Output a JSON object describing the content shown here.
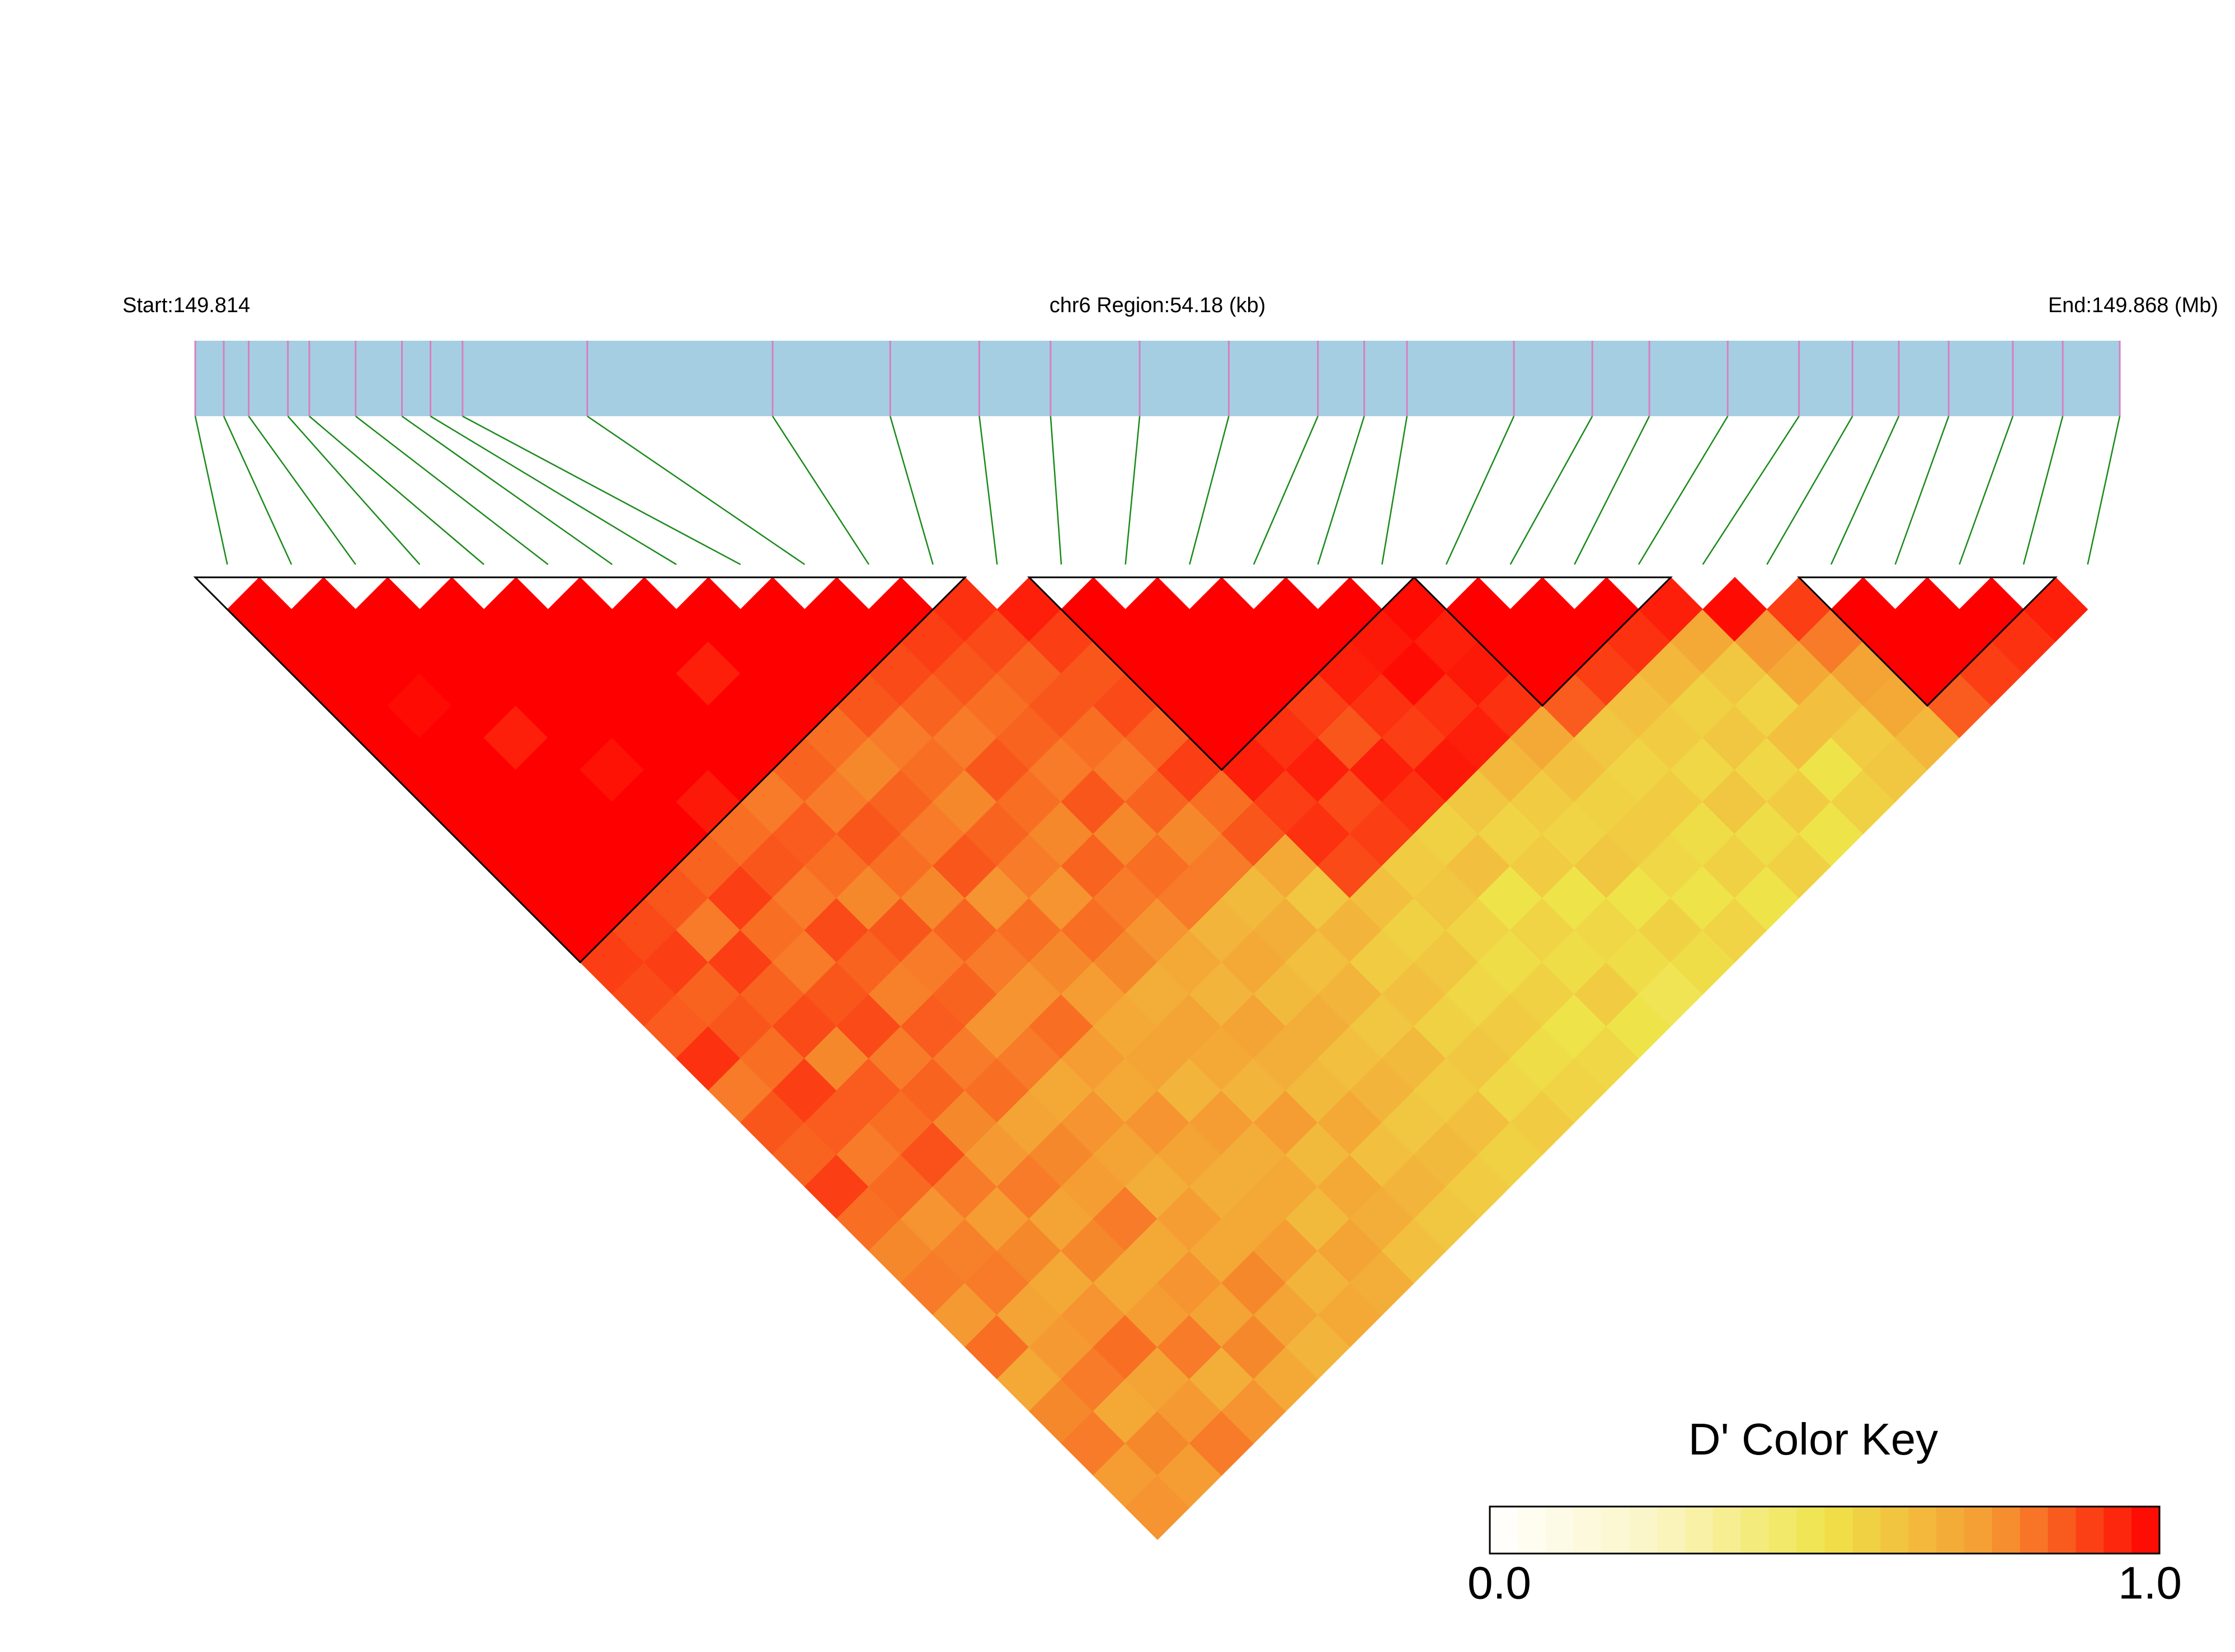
{
  "chart_data": {
    "type": "ld-heatmap",
    "start_label": "Start:149.814",
    "region_label": "chr6 Region:54.18 (kb)",
    "end_label": "End:149.868 (Mb)",
    "xlim": [
      149.814,
      149.868
    ],
    "positions": [
      149.814,
      149.8148,
      149.8155,
      149.8166,
      149.8172,
      149.8185,
      149.8198,
      149.8206,
      149.8215,
      149.825,
      149.8302,
      149.8335,
      149.836,
      149.838,
      149.8405,
      149.843,
      149.8455,
      149.8468,
      149.848,
      149.851,
      149.8532,
      149.8548,
      149.857,
      149.859,
      149.8605,
      149.8618,
      149.8632,
      149.865,
      149.8664,
      149.868
    ],
    "values": [
      [
        1,
        1,
        1,
        1,
        1,
        1,
        1,
        1,
        1,
        1,
        1,
        0.9,
        0.88,
        0.85,
        0.92,
        0.8,
        0.86,
        0.84,
        0.9,
        0.82,
        0.78,
        0.8,
        0.75,
        0.82,
        0.7,
        0.78,
        0.8,
        0.74,
        0.76
      ],
      [
        1,
        1,
        1,
        0.98,
        1,
        1,
        1,
        1,
        1,
        1,
        0.88,
        0.9,
        0.84,
        0.86,
        0.82,
        0.9,
        0.85,
        0.8,
        0.83,
        0.76,
        0.79,
        0.8,
        0.72,
        0.75,
        0.8,
        0.7,
        0.78,
        0.74
      ],
      [
        1,
        1,
        1,
        1,
        0.95,
        1,
        1,
        1,
        1,
        0.86,
        0.8,
        0.9,
        0.84,
        0.88,
        0.78,
        0.85,
        0.82,
        0.87,
        0.8,
        0.74,
        0.78,
        0.7,
        0.76,
        0.82,
        0.72,
        0.75,
        0.8
      ],
      [
        1,
        1,
        1,
        1,
        1,
        0.97,
        1,
        1,
        0.84,
        0.9,
        0.82,
        0.8,
        0.86,
        0.88,
        0.8,
        0.84,
        0.78,
        0.75,
        0.8,
        0.72,
        0.78,
        0.7,
        0.74,
        0.8,
        0.68,
        0.76
      ],
      [
        1,
        1,
        1,
        1,
        1,
        1,
        0.96,
        0.82,
        0.86,
        0.8,
        0.88,
        0.84,
        0.79,
        0.85,
        0.8,
        0.82,
        0.72,
        0.78,
        0.74,
        0.8,
        0.7,
        0.76,
        0.72,
        0.78,
        0.7
      ],
      [
        1,
        1,
        1,
        1,
        1,
        1,
        0.8,
        0.85,
        0.82,
        0.78,
        0.86,
        0.8,
        0.84,
        0.76,
        0.8,
        0.7,
        0.76,
        0.72,
        0.68,
        0.74,
        0.7,
        0.78,
        0.72,
        0.66
      ],
      [
        1,
        1,
        0.95,
        1,
        1,
        0.84,
        0.8,
        0.86,
        0.82,
        0.78,
        0.84,
        0.8,
        0.76,
        0.82,
        0.74,
        0.7,
        0.76,
        0.72,
        0.68,
        0.7,
        0.74,
        0.66,
        0.7
      ],
      [
        1,
        1,
        1,
        1,
        0.82,
        0.78,
        0.84,
        0.8,
        0.86,
        0.76,
        0.82,
        0.78,
        0.74,
        0.7,
        0.72,
        0.66,
        0.74,
        0.68,
        0.7,
        0.64,
        0.72,
        0.68
      ],
      [
        1,
        1,
        1,
        0.86,
        0.8,
        0.82,
        0.78,
        0.84,
        0.8,
        0.76,
        0.82,
        0.78,
        0.68,
        0.72,
        0.7,
        0.66,
        0.74,
        0.64,
        0.7,
        0.68,
        0.62
      ],
      [
        1,
        1,
        0.88,
        0.84,
        0.8,
        0.86,
        0.82,
        0.78,
        0.84,
        0.8,
        0.76,
        0.7,
        0.66,
        0.72,
        0.68,
        0.64,
        0.7,
        0.62,
        0.66,
        0.6
      ],
      [
        1,
        0.9,
        0.86,
        0.82,
        0.84,
        0.8,
        0.86,
        0.78,
        0.82,
        0.8,
        0.66,
        0.7,
        0.64,
        0.68,
        0.62,
        0.66,
        0.6,
        0.64,
        0.58
      ],
      [
        0.92,
        0.88,
        0.84,
        0.86,
        0.82,
        0.8,
        0.84,
        0.78,
        0.8,
        0.64,
        0.68,
        0.62,
        0.66,
        0.6,
        0.64,
        0.58,
        0.62,
        0.56
      ],
      [
        0.95,
        0.9,
        0.86,
        0.88,
        0.84,
        0.9,
        0.82,
        0.86,
        0.7,
        0.6,
        0.66,
        0.58,
        0.62,
        0.56,
        0.6,
        0.54,
        0.58
      ],
      [
        1,
        1,
        1,
        1,
        1,
        0.95,
        0.9,
        0.92,
        0.88,
        0.62,
        0.56,
        0.6,
        0.54,
        0.58,
        0.52,
        0.55
      ],
      [
        1,
        1,
        1,
        1,
        0.92,
        0.95,
        0.88,
        0.9,
        0.58,
        0.6,
        0.55,
        0.52,
        0.56,
        0.5,
        0.54
      ],
      [
        1,
        1,
        1,
        0.9,
        0.86,
        0.95,
        0.92,
        0.56,
        0.62,
        0.5,
        0.55,
        0.52,
        0.58,
        0.5
      ],
      [
        1,
        1,
        0.95,
        0.92,
        0.9,
        0.96,
        0.6,
        0.55,
        0.58,
        0.5,
        0.54,
        0.52,
        0.48
      ],
      [
        1,
        0.96,
        0.98,
        0.92,
        0.95,
        0.65,
        0.58,
        0.55,
        0.6,
        0.5,
        0.56,
        0.52
      ],
      [
        0.98,
        0.95,
        0.96,
        0.92,
        0.7,
        0.62,
        0.56,
        0.58,
        0.54,
        0.5,
        0.55
      ],
      [
        1,
        1,
        1,
        0.85,
        0.6,
        0.55,
        0.58,
        0.52,
        0.56,
        0.5
      ],
      [
        1,
        1,
        0.9,
        0.62,
        0.58,
        0.54,
        0.6,
        0.52,
        0.56
      ],
      [
        1,
        0.92,
        0.65,
        0.56,
        0.6,
        0.54,
        0.58,
        0.5
      ],
      [
        0.95,
        0.7,
        0.6,
        0.55,
        0.62,
        0.5,
        0.56
      ],
      [
        0.98,
        0.75,
        0.7,
        0.62,
        0.58,
        0.6
      ],
      [
        0.9,
        0.8,
        0.72,
        0.7,
        0.65
      ],
      [
        1,
        1,
        1,
        0.85
      ],
      [
        1,
        1,
        0.9
      ],
      [
        1,
        0.92
      ],
      [
        0.95
      ]
    ],
    "blocks": [
      [
        0,
        11
      ],
      [
        13,
        18
      ],
      [
        19,
        22
      ],
      [
        25,
        28
      ]
    ],
    "colormap": [
      "#ffffff",
      "#fbf5c4",
      "#efe34a",
      "#f59a32",
      "#ff0000"
    ],
    "colorlim": [
      0,
      1
    ],
    "colorbar_title": "D' Color Key",
    "colorbar_ticks": [
      {
        "value": 0,
        "label": "0.0"
      },
      {
        "value": 1,
        "label": "1.0"
      }
    ],
    "bar_color": "#a6cee3",
    "snp_color": "#d67fc4",
    "connector_color": "#1a8a1a",
    "block_color": "#000000"
  }
}
